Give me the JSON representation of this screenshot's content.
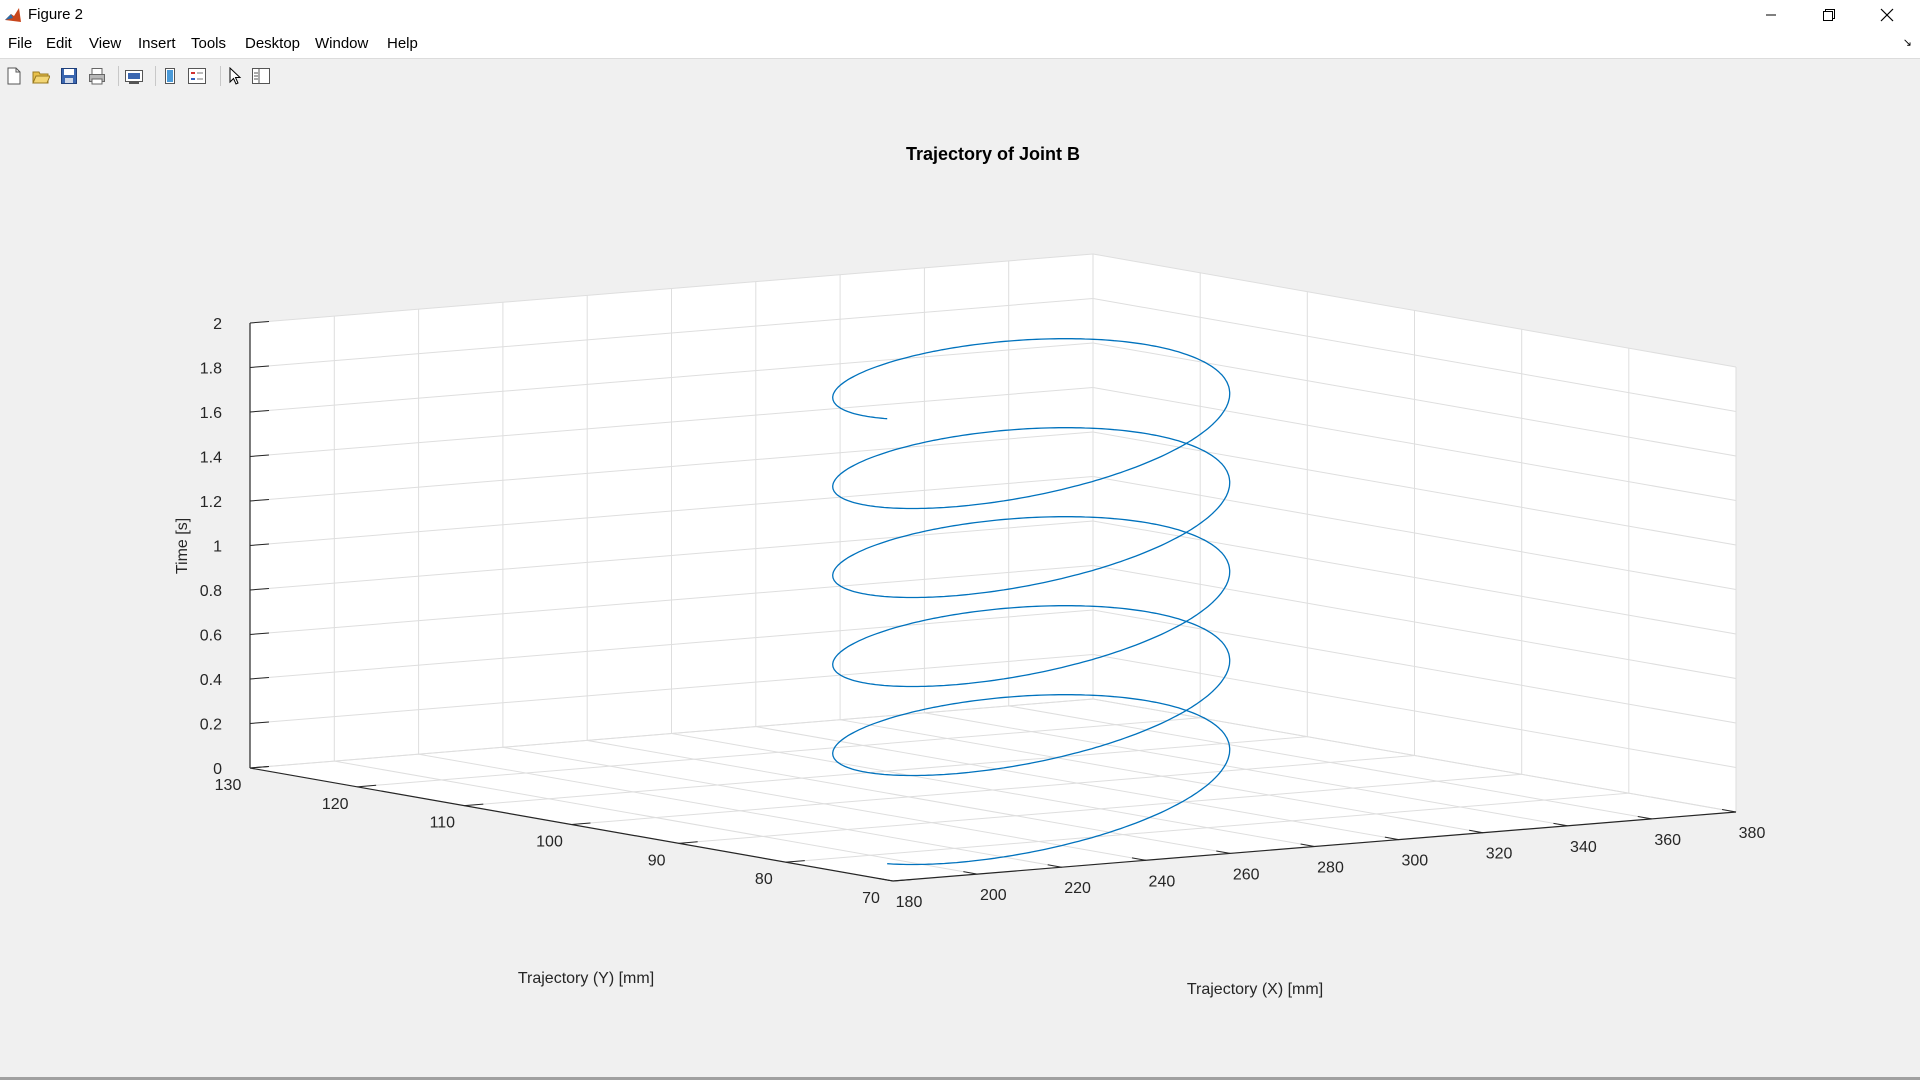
{
  "window": {
    "title": "Figure 2"
  },
  "menu": [
    {
      "label": "File"
    },
    {
      "label": "Edit"
    },
    {
      "label": "View"
    },
    {
      "label": "Insert"
    },
    {
      "label": "Tools"
    },
    {
      "label": "Desktop"
    },
    {
      "label": "Window"
    },
    {
      "label": "Help"
    }
  ],
  "toolbar": [
    "new-figure-icon",
    "open-file-icon",
    "save-icon",
    "print-icon",
    "link-plot-icon",
    "colorbar-icon",
    "legend-icon",
    "pointer-icon",
    "property-editor-icon"
  ],
  "chart_data": {
    "type": "line3d",
    "title": "Trajectory of Joint B",
    "xlabel": "Trajectory (X) [mm]",
    "ylabel": "Trajectory (Y) [mm]",
    "zlabel": "Time [s]",
    "xlim": [
      180,
      380
    ],
    "ylim": [
      70,
      130
    ],
    "zlim": [
      0,
      2
    ],
    "xticks": [
      "180",
      "200",
      "220",
      "240",
      "260",
      "280",
      "300",
      "320",
      "340",
      "360",
      "380"
    ],
    "yticks": [
      "70",
      "80",
      "90",
      "100",
      "110",
      "120",
      "130"
    ],
    "zticks": [
      "0",
      "0.2",
      "0.4",
      "0.6",
      "0.8",
      "1",
      "1.2",
      "1.4",
      "1.6",
      "1.8",
      "2"
    ],
    "grid": true,
    "line_color": "#0072bd",
    "series": [
      {
        "description": "periodic planar path traversed over time (approximately 5 cycles of 0.4 s)",
        "period_s": 0.4,
        "t_range": [
          0,
          2
        ],
        "x_range_mm": [
          200,
          345
        ],
        "y_range_mm": [
          82,
          113
        ]
      }
    ]
  }
}
